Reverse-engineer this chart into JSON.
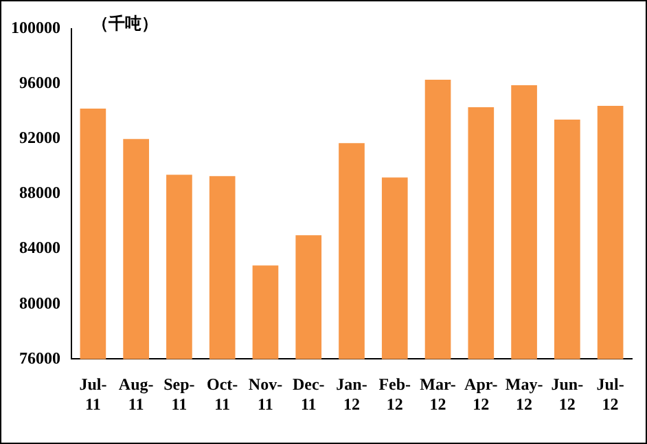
{
  "chart_data": {
    "type": "bar",
    "ylabel": "（千吨）",
    "categories": [
      "Jul-11",
      "Aug-11",
      "Sep-11",
      "Oct-11",
      "Nov-11",
      "Dec-11",
      "Jan-12",
      "Feb-12",
      "Mar-12",
      "Apr-12",
      "May-12",
      "Jun-12",
      "Jul-12"
    ],
    "values": [
      94200,
      92000,
      89400,
      89300,
      82800,
      85000,
      91700,
      89200,
      96300,
      94300,
      95900,
      93400,
      94400
    ],
    "color": "#f79646",
    "ylim": [
      76000,
      100000
    ],
    "yticks": [
      76000,
      80000,
      84000,
      88000,
      92000,
      96000,
      100000
    ],
    "grid": false,
    "legend": false
  }
}
